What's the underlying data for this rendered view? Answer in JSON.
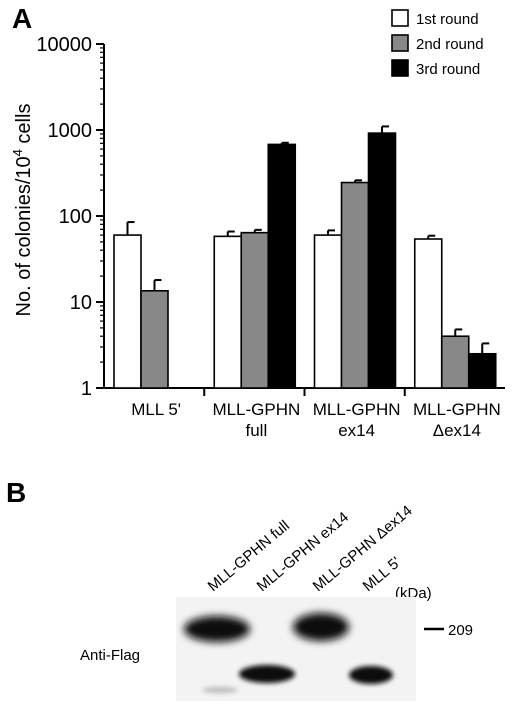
{
  "panel_a_letter": "A",
  "panel_b_letter": "B",
  "chart_data": {
    "type": "bar",
    "title": "",
    "ylabel": "No. of colonies/10",
    "ylabel_exponent": "4",
    "ylabel_suffix": " cells",
    "yscale": "log",
    "ylim": [
      1,
      10000
    ],
    "yticks": [
      1,
      10,
      100,
      1000,
      10000
    ],
    "ytick_labels": [
      "1",
      "10",
      "100",
      "1000",
      "10000"
    ],
    "grid": false,
    "legend_position": "top-right",
    "categories": [
      {
        "line1": "MLL 5'",
        "line2": ""
      },
      {
        "line1": "MLL-GPHN",
        "line2": "full"
      },
      {
        "line1": "MLL-GPHN",
        "line2": "ex14"
      },
      {
        "line1": "MLL-GPHN",
        "line2": "Δex14"
      }
    ],
    "series": [
      {
        "name": "1st round",
        "color": "#ffffff",
        "values": [
          60,
          58,
          60,
          54
        ],
        "errors": [
          25,
          8,
          8,
          5
        ]
      },
      {
        "name": "2nd round",
        "color": "#888888",
        "values": [
          13.5,
          64,
          245,
          4
        ],
        "errors": [
          4.5,
          5,
          15,
          0.8
        ]
      },
      {
        "name": "3rd round",
        "color": "#000000",
        "values": [
          null,
          680,
          920,
          2.5
        ],
        "errors": [
          null,
          30,
          180,
          0.8
        ]
      }
    ]
  },
  "blot": {
    "lane_labels": [
      "MLL-GPHN full",
      "MLL-GPHN ex14",
      "MLL-GPHN Δex14",
      "MLL 5'"
    ],
    "antibody": "Anti-Flag",
    "kda_label": "(kDa)",
    "marker": "209"
  }
}
